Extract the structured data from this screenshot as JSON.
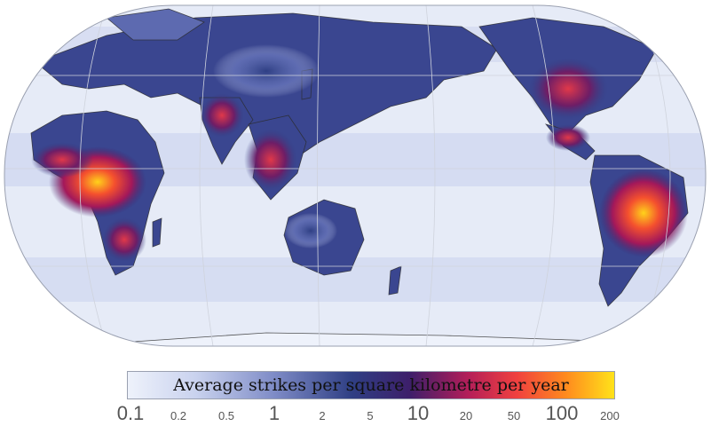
{
  "legend": {
    "title": "Average strikes per square kilometre per year",
    "ticks": [
      {
        "label": "0.1",
        "major": true
      },
      {
        "label": "0.2",
        "major": false
      },
      {
        "label": "0.5",
        "major": false
      },
      {
        "label": "1",
        "major": true
      },
      {
        "label": "2",
        "major": false
      },
      {
        "label": "5",
        "major": false
      },
      {
        "label": "10",
        "major": true
      },
      {
        "label": "20",
        "major": false
      },
      {
        "label": "50",
        "major": false
      },
      {
        "label": "100",
        "major": true
      },
      {
        "label": "200",
        "major": false
      }
    ]
  },
  "colors": {
    "low": "#eef2fb",
    "mid_low": "#7f8cc7",
    "mid": "#2f3f84",
    "mid_high": "#b41e59",
    "high": "#f0413f",
    "peak": "#ffe21a",
    "land_outline": "#2a2a2a",
    "graticule": "#cfd3dd"
  }
}
